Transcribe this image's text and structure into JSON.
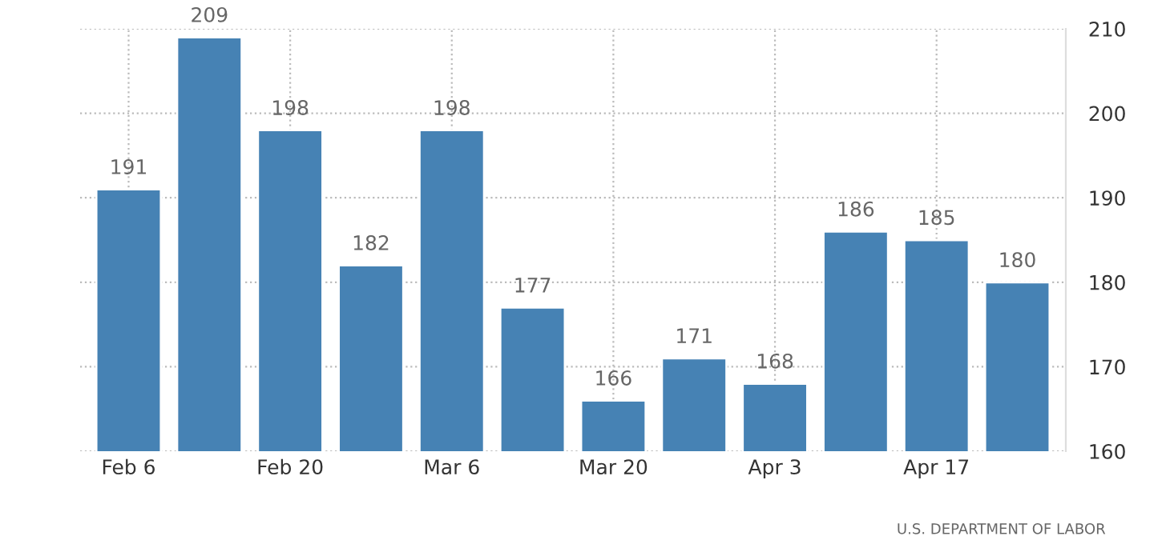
{
  "chart_data": {
    "type": "bar",
    "categories": [
      "Feb 6",
      null,
      "Feb 20",
      null,
      "Mar 6",
      null,
      "Mar 20",
      null,
      "Apr 3",
      null,
      "Apr 17",
      null
    ],
    "values": [
      191,
      209,
      198,
      182,
      198,
      177,
      166,
      171,
      168,
      186,
      185,
      180
    ],
    "color": "#4682b4",
    "ylim": [
      160,
      210
    ],
    "yticks": [
      160,
      170,
      180,
      190,
      200,
      210
    ],
    "grid": true,
    "data_labels": true,
    "annotations": [
      "U.S. DEPARTMENT OF LABOR"
    ]
  }
}
